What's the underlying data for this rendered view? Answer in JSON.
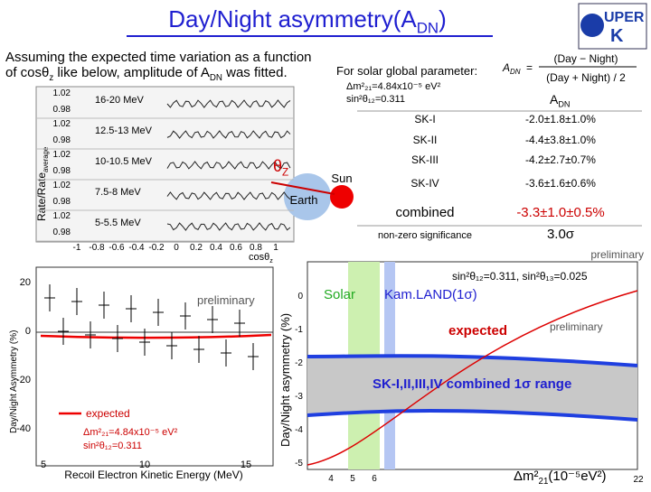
{
  "header": {
    "title": [
      "Day/Night asymmetry(A",
      "DN",
      ")"
    ],
    "logo": [
      "UPER",
      "K"
    ],
    "page": "22"
  },
  "intro": [
    [
      "Assuming the expected time variation as a function"
    ],
    [
      "of cosθ",
      "z",
      " like below, amplitude of A",
      "DN",
      " was fitted."
    ]
  ],
  "global": {
    "label": "For solar global parameter:",
    "dm2": "Δm²₂₁=4.84x10⁻⁵ eV²",
    "sin": "sin²θ₁₂=0.311",
    "formula": [
      "A",
      "DN",
      "=",
      "(Day − Night)",
      "(Day + Night) / 2"
    ]
  },
  "table": {
    "header": [
      "A",
      "DN"
    ],
    "rows": [
      [
        "SK-I",
        "-2.0±1.8±1.0%"
      ],
      [
        "SK-II",
        "-4.4±3.8±1.0%"
      ],
      [
        "SK-III",
        "-4.2±2.7±0.7%"
      ],
      [
        "SK-IV",
        "-3.6±1.6±0.6%"
      ],
      [
        "combined",
        "-3.3±1.0±0.5%"
      ],
      [
        "non-zero significance",
        "3.0σ"
      ]
    ]
  },
  "zenith_plot": {
    "ylabel": [
      "Rate/Rate",
      "average"
    ],
    "panels": [
      "16-20 MeV",
      "12.5-13 MeV",
      "10-10.5 MeV",
      "7.5-8 MeV",
      "5-5.5 MeV"
    ],
    "yticks": [
      "1.02",
      "0.98"
    ],
    "xticks": [
      "-1",
      "-0.8",
      "-0.6",
      "-0.4",
      "-0.2",
      "0",
      "0.2",
      "0.4",
      "0.6",
      "0.8",
      "1"
    ],
    "xlabel": [
      "cosθ",
      "z"
    ]
  },
  "diagram": {
    "theta": [
      "θ",
      "Z"
    ],
    "sun": "Sun",
    "earth": "Earth"
  },
  "preliminary": "preliminary",
  "energy_plot": {
    "ylabel": "Day/Night Asymmetry (%)",
    "xlabel": "Recoil Electron Kinetic Energy (MeV)",
    "yticks": [
      "20",
      "0",
      "-20",
      "-40"
    ],
    "xticks": [
      "5",
      "10",
      "15"
    ],
    "preliminary": "preliminary",
    "legend": "expected",
    "dm2": "Δm²₂₁=4.84x10⁻⁵ eV²",
    "sin": "sin²θ₁₂=0.311"
  },
  "dm2_plot": {
    "ylabel": "Day/Night asymmetry (%)",
    "params": "sin²θ₁₂=0.311, sin²θ₁₃=0.025",
    "solar": "Solar",
    "kamland": "Kam.LAND(1σ)",
    "expected": "expected",
    "preliminary": "preliminary",
    "band": "SK-I,II,III,IV combined 1σ range",
    "yticks": [
      "0",
      "-1",
      "-2",
      "-3",
      "-4",
      "-5"
    ],
    "xticks": [
      "4",
      "5",
      "6"
    ],
    "xlabel": [
      "Δm²",
      "21",
      "(10⁻⁵eV²)"
    ]
  }
}
